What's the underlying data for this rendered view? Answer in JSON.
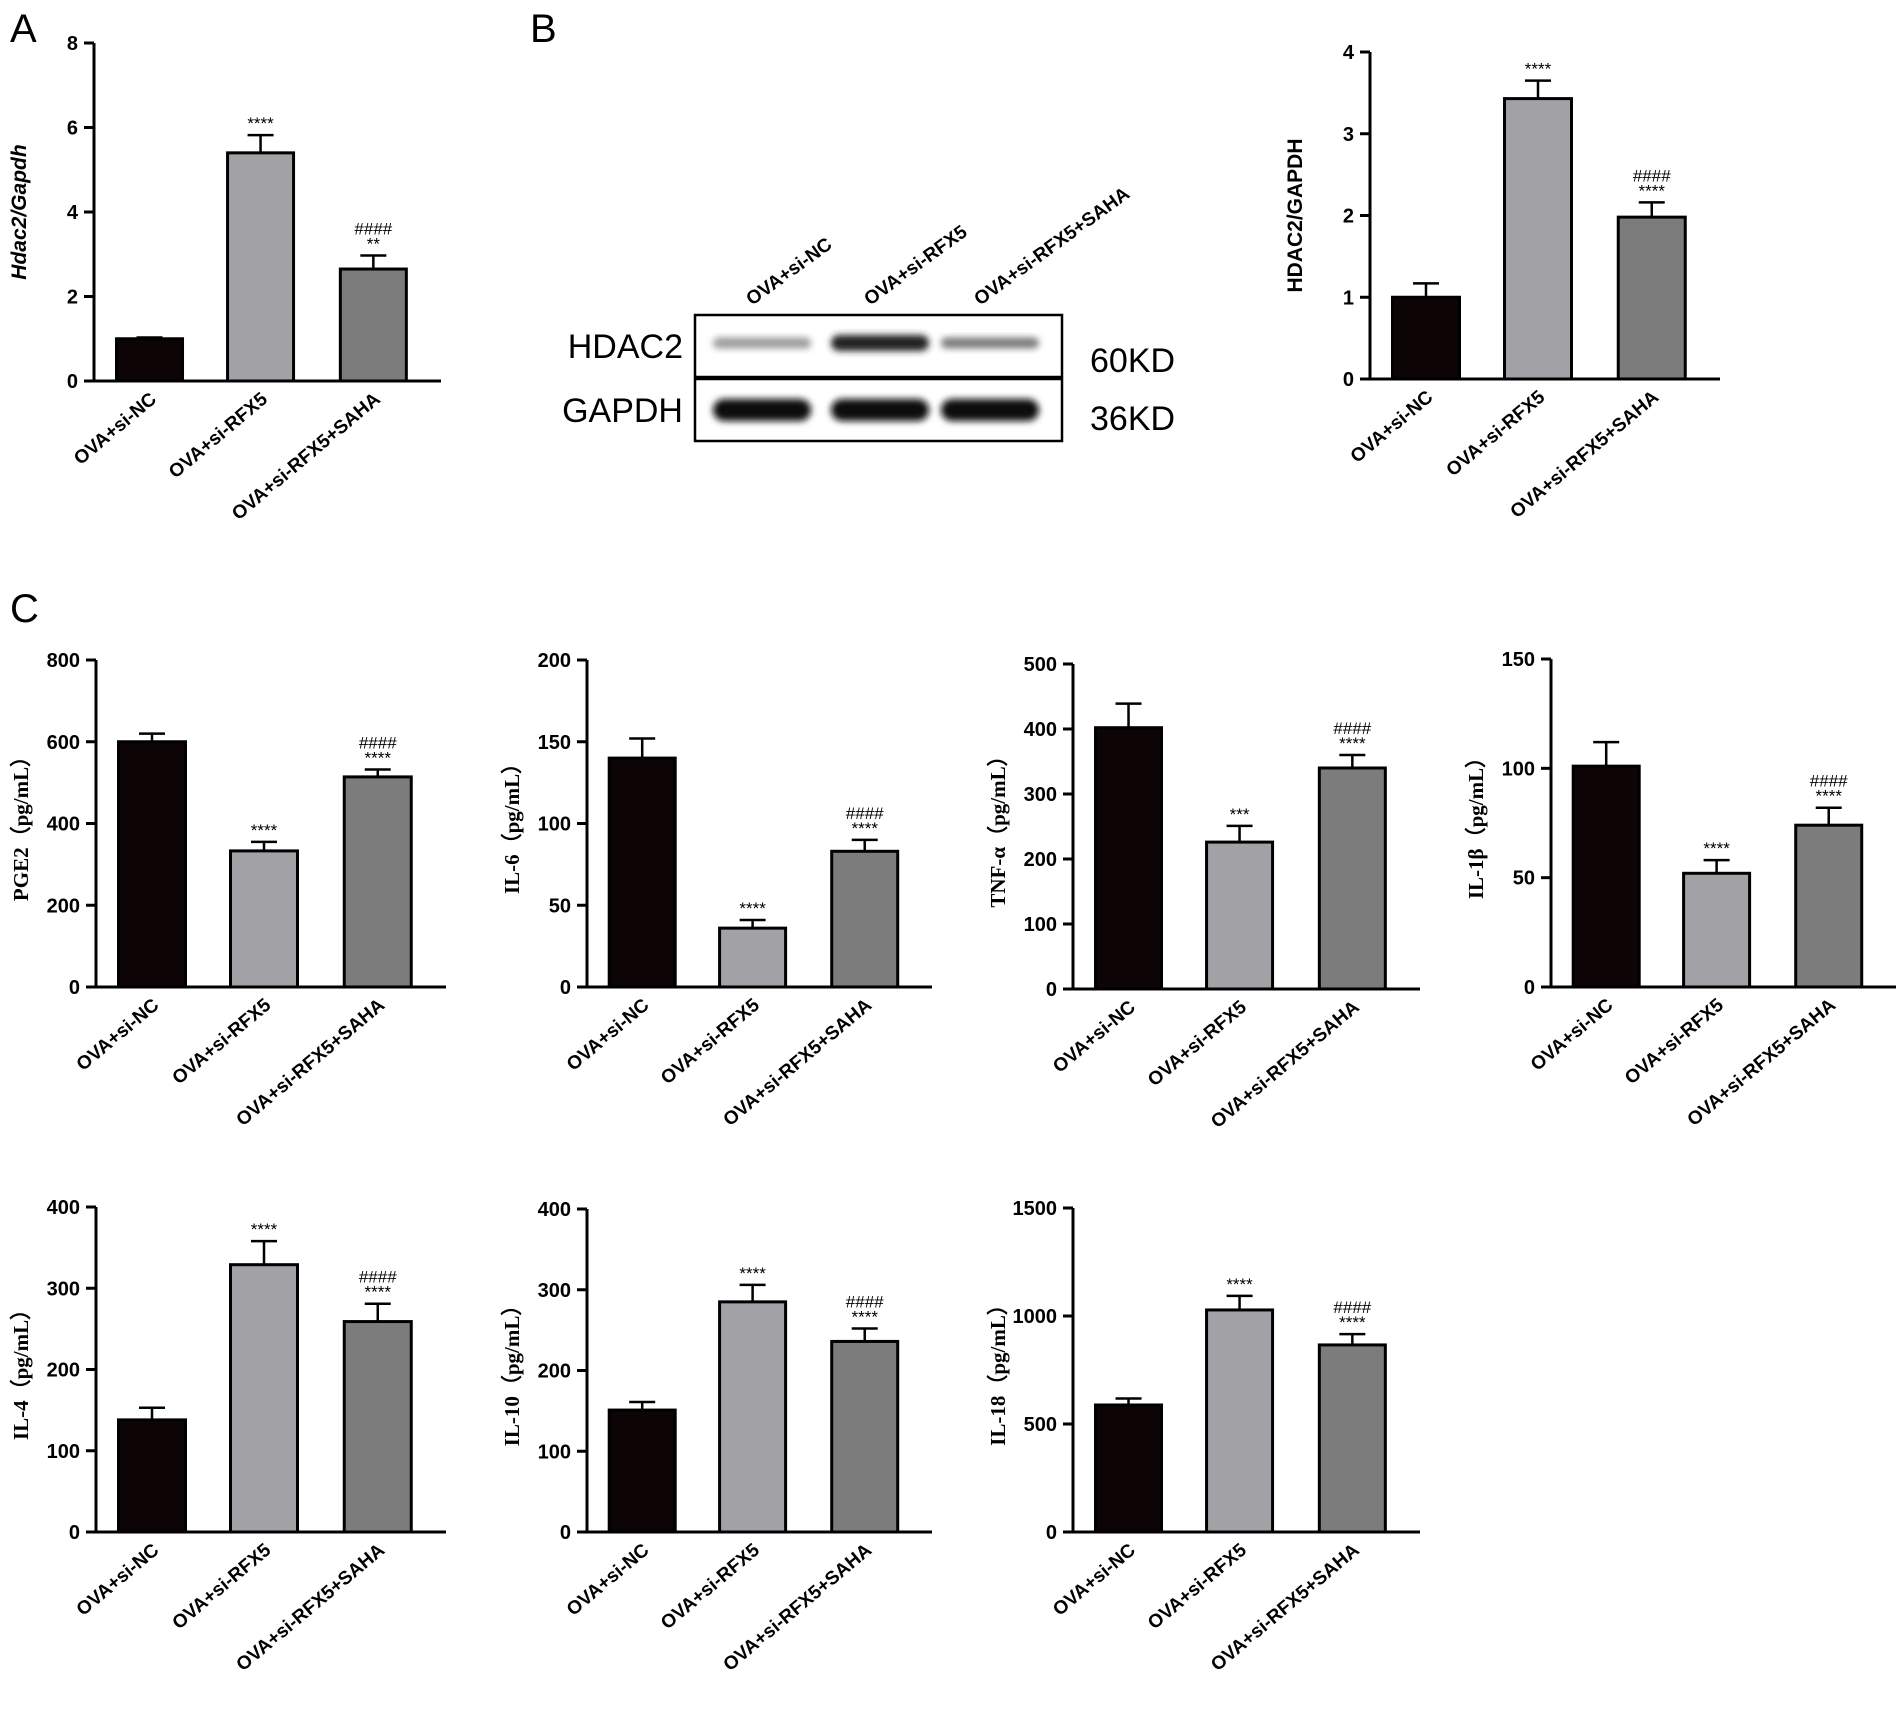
{
  "panel_labels": [
    "A",
    "B",
    "C"
  ],
  "colors": {
    "bar1": "#0d0406",
    "bar2": "#a2a2a6",
    "bar3": "#7c7c7c"
  },
  "blot": {
    "columns": [
      "OVA+si-NC",
      "OVA+si-RFX5",
      "OVA+si-RFX5+SAHA"
    ],
    "rows": [
      {
        "label": "HDAC2",
        "size": "60KD",
        "intensity": [
          0.35,
          0.9,
          0.5
        ]
      },
      {
        "label": "GAPDH",
        "size": "36KD",
        "intensity": [
          1.0,
          1.0,
          1.0
        ]
      }
    ]
  },
  "chart_data": [
    {
      "id": "hdac2-mrna",
      "type": "bar",
      "ylabel": "Hdac2/Gapdh",
      "ylabel_style": "italic",
      "categories": [
        "OVA+si-NC",
        "OVA+si-RFX5",
        "OVA+si-RFX5+SAHA"
      ],
      "values": [
        1.0,
        5.4,
        2.65
      ],
      "errors": [
        0.03,
        0.42,
        0.32
      ],
      "significance": [
        [],
        [
          "****"
        ],
        [
          "####",
          "**"
        ]
      ],
      "ylim": [
        0,
        8
      ],
      "yticks": [
        0,
        2,
        4,
        6,
        8
      ]
    },
    {
      "id": "hdac2-protein",
      "type": "bar",
      "ylabel": "HDAC2/GAPDH",
      "ylabel_style": "normal",
      "categories": [
        "OVA+si-NC",
        "OVA+si-RFX5",
        "OVA+si-RFX5+SAHA"
      ],
      "values": [
        1.0,
        3.43,
        1.98
      ],
      "errors": [
        0.17,
        0.22,
        0.18
      ],
      "significance": [
        [],
        [
          "****"
        ],
        [
          "####",
          "****"
        ]
      ],
      "ylim": [
        0,
        4
      ],
      "yticks": [
        0,
        1,
        2,
        3,
        4
      ]
    },
    {
      "id": "pge2",
      "type": "bar",
      "ylabel": "PGE2（pg/mL）",
      "ylabel_style": "serif",
      "categories": [
        "OVA+si-NC",
        "OVA+si-RFX5",
        "OVA+si-RFX5+SAHA"
      ],
      "values": [
        600,
        333,
        514
      ],
      "errors": [
        20,
        22,
        18
      ],
      "significance": [
        [],
        [
          "****"
        ],
        [
          "####",
          "****"
        ]
      ],
      "ylim": [
        0,
        800
      ],
      "yticks": [
        0,
        200,
        400,
        600,
        800
      ]
    },
    {
      "id": "il6",
      "type": "bar",
      "ylabel": "IL-6（pg/mL）",
      "ylabel_style": "serif",
      "categories": [
        "OVA+si-NC",
        "OVA+si-RFX5",
        "OVA+si-RFX5+SAHA"
      ],
      "values": [
        140,
        36,
        83
      ],
      "errors": [
        12,
        5,
        7
      ],
      "significance": [
        [],
        [
          "****"
        ],
        [
          "####",
          "****"
        ]
      ],
      "ylim": [
        0,
        200
      ],
      "yticks": [
        0,
        50,
        100,
        150,
        200
      ]
    },
    {
      "id": "tnfa",
      "type": "bar",
      "ylabel": "TNF-α（pg/mL）",
      "ylabel_style": "serif",
      "categories": [
        "OVA+si-NC",
        "OVA+si-RFX5",
        "OVA+si-RFX5+SAHA"
      ],
      "values": [
        402,
        226,
        340
      ],
      "errors": [
        37,
        25,
        20
      ],
      "significance": [
        [],
        [
          "***"
        ],
        [
          "####",
          "****"
        ]
      ],
      "ylim": [
        0,
        500
      ],
      "yticks": [
        0,
        100,
        200,
        300,
        400,
        500
      ]
    },
    {
      "id": "il1b",
      "type": "bar",
      "ylabel": "IL-1β（pg/mL）",
      "ylabel_style": "serif",
      "categories": [
        "OVA+si-NC",
        "OVA+si-RFX5",
        "OVA+si-RFX5+SAHA"
      ],
      "values": [
        101,
        52,
        74
      ],
      "errors": [
        11,
        6,
        8
      ],
      "significance": [
        [],
        [
          "****"
        ],
        [
          "####",
          "****"
        ]
      ],
      "ylim": [
        0,
        150
      ],
      "yticks": [
        0,
        50,
        100,
        150
      ]
    },
    {
      "id": "il4",
      "type": "bar",
      "ylabel": "IL-4（pg/mL）",
      "ylabel_style": "serif",
      "categories": [
        "OVA+si-NC",
        "OVA+si-RFX5",
        "OVA+si-RFX5+SAHA"
      ],
      "values": [
        138,
        329,
        259
      ],
      "errors": [
        15,
        29,
        22
      ],
      "significance": [
        [],
        [
          "****"
        ],
        [
          "####",
          "****"
        ]
      ],
      "ylim": [
        0,
        400
      ],
      "yticks": [
        0,
        100,
        200,
        300,
        400
      ]
    },
    {
      "id": "il10",
      "type": "bar",
      "ylabel": "IL-10（pg/mL）",
      "ylabel_style": "serif",
      "categories": [
        "OVA+si-NC",
        "OVA+si-RFX5",
        "OVA+si-RFX5+SAHA"
      ],
      "values": [
        151,
        285,
        236
      ],
      "errors": [
        10,
        21,
        16
      ],
      "significance": [
        [],
        [
          "****"
        ],
        [
          "####",
          "****"
        ]
      ],
      "ylim": [
        0,
        400
      ],
      "yticks": [
        0,
        100,
        200,
        300,
        400
      ]
    },
    {
      "id": "il18",
      "type": "bar",
      "ylabel": "IL-18（pg/mL）",
      "ylabel_style": "serif",
      "categories": [
        "OVA+si-NC",
        "OVA+si-RFX5",
        "OVA+si-RFX5+SAHA"
      ],
      "values": [
        588,
        1028,
        866
      ],
      "errors": [
        30,
        65,
        50
      ],
      "significance": [
        [],
        [
          "****"
        ],
        [
          "####",
          "****"
        ]
      ],
      "ylim": [
        0,
        1500
      ],
      "yticks": [
        0,
        500,
        1000,
        1500
      ]
    }
  ]
}
